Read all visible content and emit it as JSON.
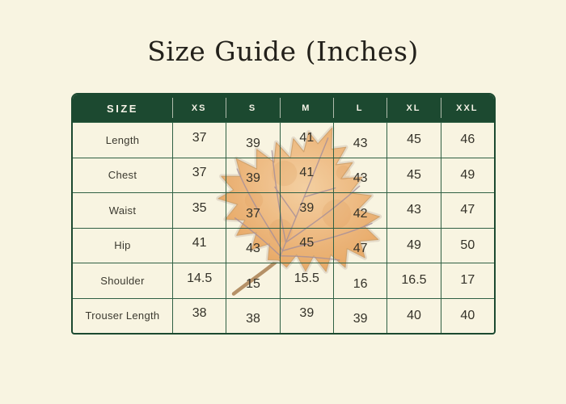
{
  "page": {
    "title": "Size Guide (Inches)",
    "background_color": "#f8f4e1"
  },
  "colors": {
    "header_background": "#1c4930",
    "grid_line": "#306044",
    "outer_border": "#1c4930",
    "header_text": "#f6f3e7",
    "title_text": "#23211b",
    "cell_text": "#343229",
    "leaf_orange": "#eeb87e"
  },
  "size_table": {
    "corner_label": "SIZE",
    "size_columns": [
      "XS",
      "S",
      "M",
      "L",
      "XL",
      "XXL"
    ],
    "rows": [
      {
        "label": "Length",
        "values": [
          "37",
          "39",
          "41",
          "43",
          "45",
          "46"
        ]
      },
      {
        "label": "Chest",
        "values": [
          "37",
          "39",
          "41",
          "43",
          "45",
          "49"
        ]
      },
      {
        "label": "Waist",
        "values": [
          "35",
          "37",
          "39",
          "42",
          "43",
          "47"
        ]
      },
      {
        "label": "Hip",
        "values": [
          "41",
          "43",
          "45",
          "47",
          "49",
          "50"
        ]
      },
      {
        "label": "Shoulder",
        "values": [
          "14.5",
          "15",
          "15.5",
          "16",
          "16.5",
          "17"
        ]
      },
      {
        "label": "Trouser Length",
        "values": [
          "38",
          "38",
          "39",
          "39",
          "40",
          "40"
        ]
      }
    ]
  },
  "decoration": {
    "watermark": "watercolor-maple-leaf"
  }
}
